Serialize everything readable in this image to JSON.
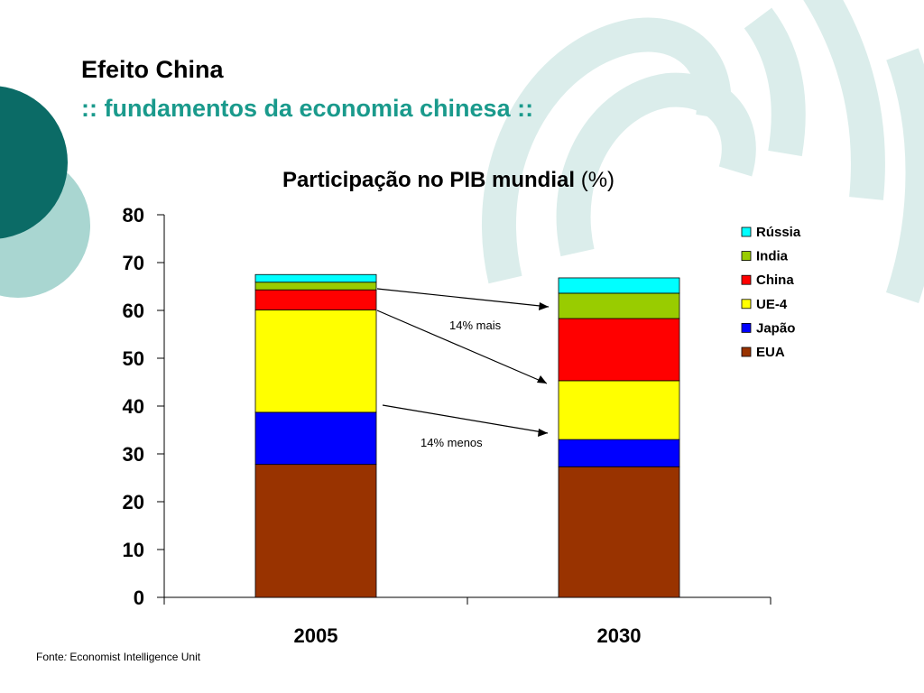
{
  "slide": {
    "title": "Efeito China",
    "subtitle": ":: fundamentos da economia chinesa ::"
  },
  "source": {
    "label": "Fonte",
    "colon": ":",
    "text": " Economist Intelligence Unit"
  },
  "colors": {
    "accent_teal": "#1a9a8c",
    "decor_dark_teal": "#0b6b66",
    "decor_light_teal": "#a9d6d1"
  },
  "chart_data": {
    "type": "bar",
    "stacked": true,
    "title_bold": "Participação no PIB mundial",
    "title_rest": " (%)",
    "categories": [
      "2005",
      "2030"
    ],
    "ylim": [
      0,
      80
    ],
    "yticks": [
      0,
      10,
      20,
      30,
      40,
      50,
      60,
      70,
      80
    ],
    "grid": false,
    "legend_position": "right",
    "series": [
      {
        "name": "EUA",
        "color": "#993300",
        "values": [
          27.8,
          27.3
        ]
      },
      {
        "name": "Japão",
        "color": "#0000FF",
        "values": [
          10.9,
          5.7
        ]
      },
      {
        "name": "UE-4",
        "color": "#FFFF00",
        "values": [
          21.4,
          12.3
        ]
      },
      {
        "name": "China",
        "color": "#FF0000",
        "values": [
          4.2,
          13.0
        ]
      },
      {
        "name": "India",
        "color": "#99CC00",
        "values": [
          1.6,
          5.3
        ]
      },
      {
        "name": "Rússia",
        "color": "#00FFFF",
        "values": [
          1.6,
          3.2
        ]
      }
    ],
    "annotations": [
      {
        "text": "14% mais"
      },
      {
        "text": "14% menos"
      }
    ]
  }
}
